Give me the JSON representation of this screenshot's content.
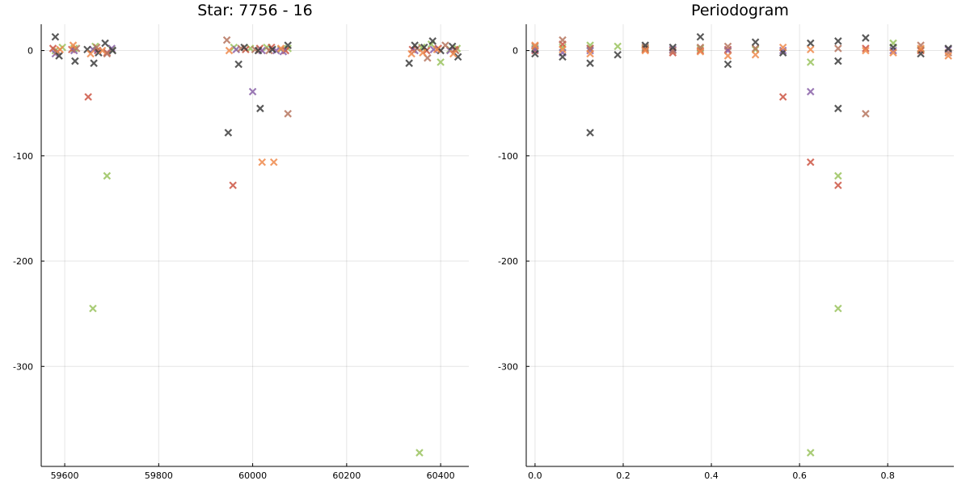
{
  "chart_data": [
    {
      "type": "scatter",
      "title": "Star: 7756 - 16",
      "xlabel": "",
      "ylabel": "",
      "xlim": [
        59550,
        60460
      ],
      "ylim": [
        -395,
        25
      ],
      "xticks": [
        59600,
        59800,
        60000,
        60200,
        60400
      ],
      "yticks": [
        0,
        -100,
        -200,
        -300
      ],
      "grid": true,
      "legend": "none",
      "marker": "x",
      "colors": [
        "#9ac35e",
        "#cd5543",
        "#8a62a8",
        "#b6765f",
        "#3d3d3d",
        "#ef8a4c"
      ],
      "series": [
        {
          "values": [
            [
              59580,
              0
            ],
            [
              59595,
              3
            ],
            [
              59620,
              2
            ],
            [
              59665,
              4
            ],
            [
              59700,
              1
            ],
            [
              59660,
              -245
            ],
            [
              59690,
              -119
            ],
            [
              59960,
              3
            ],
            [
              59995,
              2
            ],
            [
              60030,
              3
            ],
            [
              60060,
              1
            ],
            [
              60075,
              2
            ],
            [
              60360,
              3
            ],
            [
              60380,
              6
            ],
            [
              60400,
              -11
            ],
            [
              60420,
              1
            ],
            [
              60435,
              2
            ],
            [
              60355,
              -382
            ]
          ]
        },
        {
          "values": [
            [
              59575,
              2
            ],
            [
              59615,
              1
            ],
            [
              59650,
              -44
            ],
            [
              59670,
              0
            ],
            [
              59690,
              -2
            ],
            [
              59958,
              -128
            ],
            [
              59985,
              1
            ],
            [
              60015,
              2
            ],
            [
              60040,
              3
            ],
            [
              60070,
              0
            ],
            [
              60340,
              1
            ],
            [
              60370,
              0
            ],
            [
              60395,
              2
            ],
            [
              60430,
              1
            ]
          ]
        },
        {
          "values": [
            [
              59580,
              -3
            ],
            [
              59620,
              0
            ],
            [
              59660,
              1
            ],
            [
              59700,
              2
            ],
            [
              59965,
              1
            ],
            [
              60000,
              -39
            ],
            [
              60020,
              0
            ],
            [
              60050,
              0
            ],
            [
              60065,
              -1
            ],
            [
              60345,
              0
            ],
            [
              60385,
              1
            ],
            [
              60420,
              0
            ]
          ]
        },
        {
          "values": [
            [
              59585,
              -1
            ],
            [
              59625,
              2
            ],
            [
              59668,
              3
            ],
            [
              59690,
              -3
            ],
            [
              59945,
              10
            ],
            [
              59975,
              2
            ],
            [
              60005,
              1
            ],
            [
              60035,
              0
            ],
            [
              60075,
              -60
            ],
            [
              60350,
              2
            ],
            [
              60372,
              -7
            ],
            [
              60410,
              5
            ],
            [
              60432,
              0
            ]
          ]
        },
        {
          "values": [
            [
              59580,
              13
            ],
            [
              59588,
              -5
            ],
            [
              59622,
              -10
            ],
            [
              59648,
              1
            ],
            [
              59662,
              -12
            ],
            [
              59672,
              -2
            ],
            [
              59686,
              7
            ],
            [
              59702,
              0
            ],
            [
              59948,
              -78
            ],
            [
              59970,
              -13
            ],
            [
              59982,
              3
            ],
            [
              60012,
              0
            ],
            [
              60016,
              -55
            ],
            [
              60042,
              1
            ],
            [
              60075,
              5
            ],
            [
              60333,
              -12
            ],
            [
              60345,
              5
            ],
            [
              60365,
              3
            ],
            [
              60383,
              9
            ],
            [
              60400,
              0
            ],
            [
              60425,
              4
            ],
            [
              60437,
              -6
            ]
          ]
        },
        {
          "values": [
            [
              59590,
              1
            ],
            [
              59618,
              5
            ],
            [
              59655,
              -3
            ],
            [
              59680,
              0
            ],
            [
              59950,
              0
            ],
            [
              60020,
              -106
            ],
            [
              60045,
              -106
            ],
            [
              60060,
              2
            ],
            [
              60338,
              -3
            ],
            [
              60362,
              -2
            ],
            [
              60392,
              1
            ],
            [
              60427,
              -3
            ]
          ]
        }
      ]
    },
    {
      "type": "scatter",
      "title": "Periodogram",
      "xlabel": "",
      "ylabel": "",
      "xlim": [
        -0.02,
        0.95
      ],
      "ylim": [
        -395,
        25
      ],
      "xticks": [
        0.0,
        0.2,
        0.4,
        0.6,
        0.8
      ],
      "yticks": [
        0,
        -100,
        -200,
        -300
      ],
      "grid": true,
      "legend": "none",
      "marker": "x",
      "colors": [
        "#9ac35e",
        "#cd5543",
        "#8a62a8",
        "#b6765f",
        "#3d3d3d",
        "#ef8a4c"
      ],
      "series": [
        {
          "values": [
            [
              0.0,
              2
            ],
            [
              0.0625,
              3
            ],
            [
              0.125,
              5
            ],
            [
              0.1875,
              4
            ],
            [
              0.25,
              2
            ],
            [
              0.375,
              2
            ],
            [
              0.5,
              1
            ],
            [
              0.625,
              -11
            ],
            [
              0.6875,
              -119
            ],
            [
              0.6875,
              -245
            ],
            [
              0.625,
              -382
            ],
            [
              0.8125,
              7
            ],
            [
              0.875,
              1
            ]
          ]
        },
        {
          "values": [
            [
              0.0,
              0
            ],
            [
              0.0625,
              6
            ],
            [
              0.125,
              2
            ],
            [
              0.25,
              1
            ],
            [
              0.3125,
              -2
            ],
            [
              0.375,
              0
            ],
            [
              0.4375,
              1
            ],
            [
              0.5625,
              -44
            ],
            [
              0.625,
              -106
            ],
            [
              0.6875,
              -128
            ],
            [
              0.75,
              2
            ],
            [
              0.875,
              0
            ]
          ]
        },
        {
          "values": [
            [
              0.0,
              1
            ],
            [
              0.0625,
              -2
            ],
            [
              0.125,
              0
            ],
            [
              0.3125,
              1
            ],
            [
              0.4375,
              0
            ],
            [
              0.5625,
              0
            ],
            [
              0.625,
              -39
            ],
            [
              0.8125,
              0
            ],
            [
              0.9375,
              1
            ]
          ]
        },
        {
          "values": [
            [
              0.0,
              4
            ],
            [
              0.0625,
              10
            ],
            [
              0.125,
              2
            ],
            [
              0.25,
              3
            ],
            [
              0.3125,
              0
            ],
            [
              0.375,
              3
            ],
            [
              0.4375,
              4
            ],
            [
              0.5,
              2
            ],
            [
              0.6875,
              2
            ],
            [
              0.75,
              -60
            ],
            [
              0.875,
              5
            ],
            [
              0.9375,
              -2
            ]
          ]
        },
        {
          "values": [
            [
              0.0,
              -3
            ],
            [
              0.0625,
              -6
            ],
            [
              0.125,
              -12
            ],
            [
              0.125,
              -78
            ],
            [
              0.1875,
              -4
            ],
            [
              0.25,
              5
            ],
            [
              0.3125,
              3
            ],
            [
              0.375,
              13
            ],
            [
              0.4375,
              -13
            ],
            [
              0.5,
              8
            ],
            [
              0.5625,
              -2
            ],
            [
              0.625,
              7
            ],
            [
              0.6875,
              9
            ],
            [
              0.6875,
              -55
            ],
            [
              0.6875,
              -10
            ],
            [
              0.75,
              12
            ],
            [
              0.8125,
              3
            ],
            [
              0.875,
              -3
            ],
            [
              0.9375,
              2
            ]
          ]
        },
        {
          "values": [
            [
              0.0,
              5
            ],
            [
              0.0625,
              1
            ],
            [
              0.125,
              -3
            ],
            [
              0.25,
              0
            ],
            [
              0.375,
              -1
            ],
            [
              0.4375,
              -5
            ],
            [
              0.5,
              -4
            ],
            [
              0.5625,
              3
            ],
            [
              0.625,
              1
            ],
            [
              0.75,
              0
            ],
            [
              0.8125,
              -2
            ],
            [
              0.875,
              2
            ],
            [
              0.9375,
              -5
            ]
          ]
        }
      ]
    }
  ]
}
